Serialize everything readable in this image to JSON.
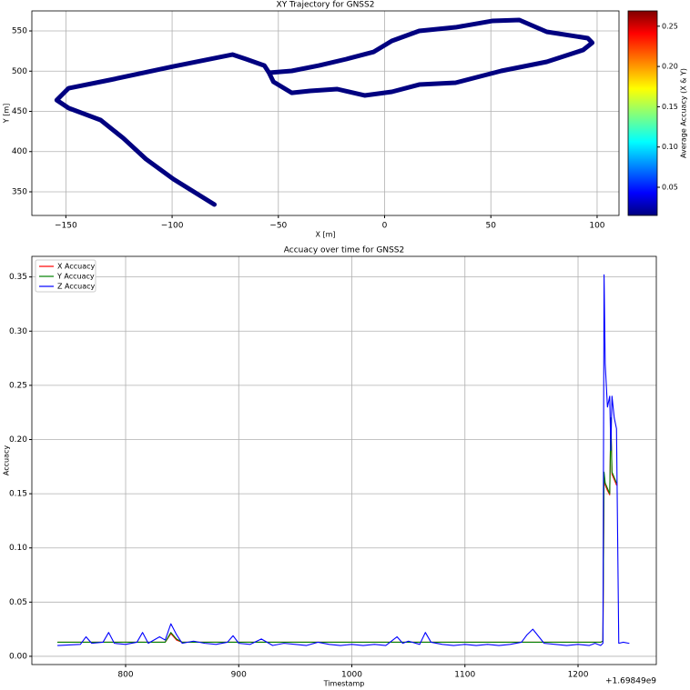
{
  "chart_data": [
    {
      "type": "line",
      "title": "XY Trajectory for GNSS2",
      "x_label": "X [m]",
      "y_label": "Y [m]",
      "color": "#000080",
      "x": [
        -80.1,
        -99.4,
        -112.3,
        -123,
        -133.7,
        -148.7,
        -154.3,
        -148.7,
        -129.4,
        -99.4,
        -71.6,
        -65.2,
        -56.6,
        -54.4,
        -52.3,
        -43.7,
        -35.1,
        -22.3,
        -9.4,
        3.4,
        16.3,
        33.4,
        54.9,
        76.3,
        93.4,
        97.7,
        95.6,
        76.3,
        63.4,
        50.6,
        33.4,
        16.3,
        3.4,
        -5.1,
        -18,
        -30.9,
        -43.7,
        -54.4
      ],
      "y": [
        334.2,
        365.8,
        390.7,
        416.7,
        439.3,
        454.1,
        464,
        478.8,
        489,
        505.9,
        520.6,
        515,
        507,
        498,
        486.7,
        473,
        475.4,
        477.7,
        469.8,
        474.3,
        483.3,
        485.6,
        500.3,
        511.6,
        526.3,
        535.3,
        541,
        548.9,
        563.6,
        562.4,
        554.5,
        550,
        537.6,
        524,
        515,
        507,
        500.3,
        498
      ],
      "xlim": [
        -166,
        110.3
      ],
      "ylim": [
        320.6,
        574.9
      ],
      "xticks": [
        {
          "value": -150,
          "label": "−150"
        },
        {
          "value": -100,
          "label": "−100"
        },
        {
          "value": -50,
          "label": "−50"
        },
        0,
        50,
        100
      ],
      "yticks": [
        350,
        400,
        450,
        500,
        550
      ],
      "grid": true,
      "colorbar": {
        "label": "Average Accuacy (X & Y)",
        "colormap": "jet",
        "clim": [
          0.015,
          0.269
        ],
        "ticks": [
          0.05,
          {
            "value": 0.1,
            "label": "0.10"
          },
          0.15,
          {
            "value": 0.2,
            "label": "0.20"
          },
          0.25
        ]
      }
    },
    {
      "type": "line",
      "title": "Accuacy over time for GNSS2",
      "x_label": "Timestamp",
      "y_label": "Accuacy",
      "x_offset_label": "+1.69849e9",
      "x": [
        740,
        760,
        765,
        770,
        780,
        785,
        790,
        800,
        810,
        815,
        820,
        830,
        835,
        840,
        845,
        850,
        860,
        870,
        880,
        890,
        895,
        900,
        910,
        920,
        930,
        940,
        950,
        960,
        970,
        980,
        990,
        1000,
        1010,
        1020,
        1030,
        1040,
        1045,
        1050,
        1060,
        1065,
        1070,
        1080,
        1090,
        1100,
        1110,
        1120,
        1130,
        1140,
        1150,
        1155,
        1160,
        1170,
        1180,
        1190,
        1200,
        1210,
        1215,
        1220,
        1222,
        1223,
        1224,
        1226,
        1228,
        1229,
        1230,
        1232,
        1234,
        1236,
        1240,
        1245
      ],
      "series": [
        {
          "name": "X Accuacy",
          "color": "#ff0000",
          "values": [
            0.013,
            0.013,
            0.013,
            0.013,
            0.013,
            0.013,
            0.013,
            0.013,
            0.013,
            0.013,
            0.013,
            0.013,
            0.013,
            0.021,
            0.015,
            0.013,
            0.013,
            0.013,
            0.013,
            0.013,
            0.013,
            0.013,
            0.013,
            0.013,
            0.013,
            0.013,
            0.013,
            0.013,
            0.013,
            0.013,
            0.013,
            0.013,
            0.013,
            0.013,
            0.013,
            0.013,
            0.013,
            0.013,
            0.013,
            0.013,
            0.013,
            0.013,
            0.013,
            0.013,
            0.013,
            0.013,
            0.013,
            0.013,
            0.013,
            0.013,
            0.013,
            0.013,
            0.013,
            0.013,
            0.013,
            0.013,
            0.013,
            0.013,
            0.014,
            0.168,
            0.158,
            0.153,
            0.149,
            0.218,
            0.168,
            0.163,
            0.158,
            null,
            null,
            null
          ]
        },
        {
          "name": "Y Accuacy",
          "color": "#008000",
          "values": [
            0.013,
            0.013,
            0.013,
            0.013,
            0.013,
            0.013,
            0.013,
            0.013,
            0.013,
            0.013,
            0.013,
            0.013,
            0.013,
            0.022,
            0.016,
            0.013,
            0.013,
            0.013,
            0.013,
            0.013,
            0.013,
            0.013,
            0.013,
            0.013,
            0.013,
            0.013,
            0.013,
            0.013,
            0.013,
            0.013,
            0.013,
            0.013,
            0.013,
            0.013,
            0.013,
            0.013,
            0.013,
            0.013,
            0.013,
            0.013,
            0.013,
            0.013,
            0.013,
            0.013,
            0.013,
            0.013,
            0.013,
            0.013,
            0.013,
            0.013,
            0.013,
            0.013,
            0.013,
            0.013,
            0.013,
            0.013,
            0.013,
            0.013,
            0.014,
            0.17,
            0.16,
            0.155,
            0.15,
            0.22,
            0.17,
            0.165,
            0.16,
            null,
            null,
            null
          ]
        },
        {
          "name": "Z Accuacy",
          "color": "#0000ff",
          "values": [
            0.01,
            0.011,
            0.018,
            0.012,
            0.013,
            0.022,
            0.012,
            0.011,
            0.013,
            0.022,
            0.012,
            0.018,
            0.015,
            0.03,
            0.02,
            0.012,
            0.014,
            0.012,
            0.011,
            0.013,
            0.019,
            0.012,
            0.011,
            0.016,
            0.01,
            0.012,
            0.011,
            0.01,
            0.013,
            0.011,
            0.01,
            0.011,
            0.01,
            0.011,
            0.01,
            0.018,
            0.012,
            0.014,
            0.011,
            0.022,
            0.013,
            0.011,
            0.01,
            0.011,
            0.01,
            0.011,
            0.01,
            0.011,
            0.013,
            0.02,
            0.025,
            0.012,
            0.011,
            0.01,
            0.011,
            0.01,
            0.012,
            0.01,
            0.012,
            0.352,
            0.27,
            0.23,
            0.24,
            0.19,
            0.24,
            0.22,
            0.21,
            0.012,
            0.013,
            0.012
          ]
        }
      ],
      "xlim": [
        717.1,
        1269.2
      ],
      "ylim": [
        -0.0076,
        0.369
      ],
      "xticks": [
        800,
        900,
        1000,
        1100,
        1200
      ],
      "yticks": [
        {
          "value": 0,
          "label": "0.00"
        },
        0.05,
        {
          "value": 0.1,
          "label": "0.10"
        },
        0.15,
        {
          "value": 0.2,
          "label": "0.20"
        },
        0.25,
        {
          "value": 0.3,
          "label": "0.30"
        },
        0.35
      ],
      "grid": true,
      "legend": "upper-left"
    }
  ]
}
